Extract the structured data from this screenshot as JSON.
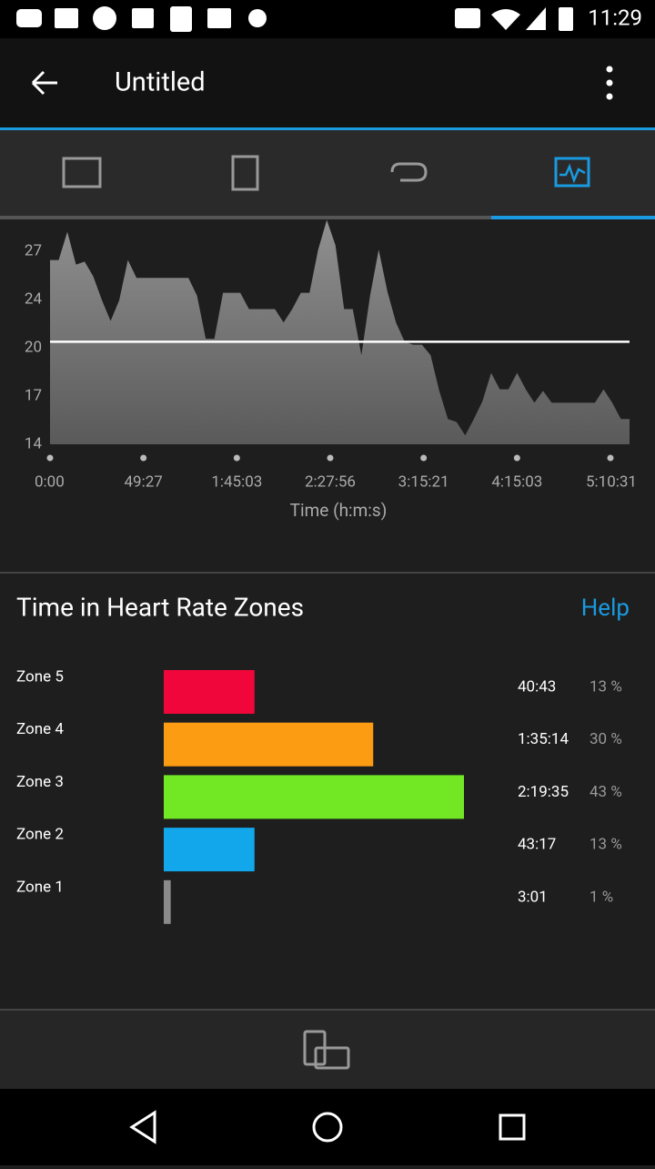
{
  "status_bar": {
    "time": "11:29"
  },
  "app_bar": {
    "title": "Untitled"
  },
  "chart_data": [
    {
      "type": "area",
      "x_label": "Time (h:m:s)",
      "x_labels": [
        "0:00",
        "49:27",
        "1:45:03",
        "2:27:56",
        "3:15:21",
        "4:15:03",
        "5:10:31"
      ],
      "values": [
        26.4,
        26.4,
        28.3,
        26.1,
        26.3,
        25.3,
        23.7,
        22.3,
        23.7,
        26.4,
        25.2,
        25.2,
        25.2,
        25.2,
        25.2,
        25.2,
        25.2,
        24.0,
        21.1,
        21.1,
        24.2,
        24.2,
        24.2,
        23.1,
        23.1,
        23.1,
        23.1,
        22.2,
        23.1,
        24.2,
        24.2,
        27.1,
        29.1,
        27.4,
        23.1,
        23.1,
        20.0,
        24.0,
        27.1,
        24.3,
        22.2,
        20.9,
        20.7,
        20.7,
        20.0,
        17.6,
        15.7,
        15.5,
        14.6,
        15.7,
        16.9,
        18.8,
        17.7,
        17.7,
        18.8,
        17.7,
        16.8,
        17.6,
        16.8,
        16.8,
        16.8,
        16.8,
        16.8,
        16.8,
        17.7,
        16.8,
        15.7,
        15.7
      ],
      "average": 20.9,
      "color": "#8a8a8a",
      "ylim": [
        14,
        29.2
      ],
      "yticks": [
        14,
        {
          "value": 17.25,
          "label": "17"
        },
        {
          "value": 20.5,
          "label": "20"
        },
        {
          "value": 23.75,
          "label": "24"
        },
        27
      ]
    },
    {
      "type": "bar",
      "orientation": "horizontal",
      "title": "Time in Heart Rate Zones",
      "link": "Help",
      "categories": [
        "Zone 5",
        "Zone 4",
        "Zone 3",
        "Zone 2",
        "Zone 1"
      ],
      "values": [
        13,
        30,
        43,
        13,
        1
      ],
      "value_labels": [
        "13 %",
        "30 %",
        "43 %",
        "13 %",
        "1 %"
      ],
      "times": [
        "40:43",
        "1:35:14",
        "2:19:35",
        "43:17",
        "3:01"
      ],
      "colors": [
        "#f0063a",
        "#fc9c12",
        "#72e824",
        "#12a6ea",
        "#8a8a8a"
      ],
      "xlim": [
        0,
        43
      ]
    }
  ]
}
